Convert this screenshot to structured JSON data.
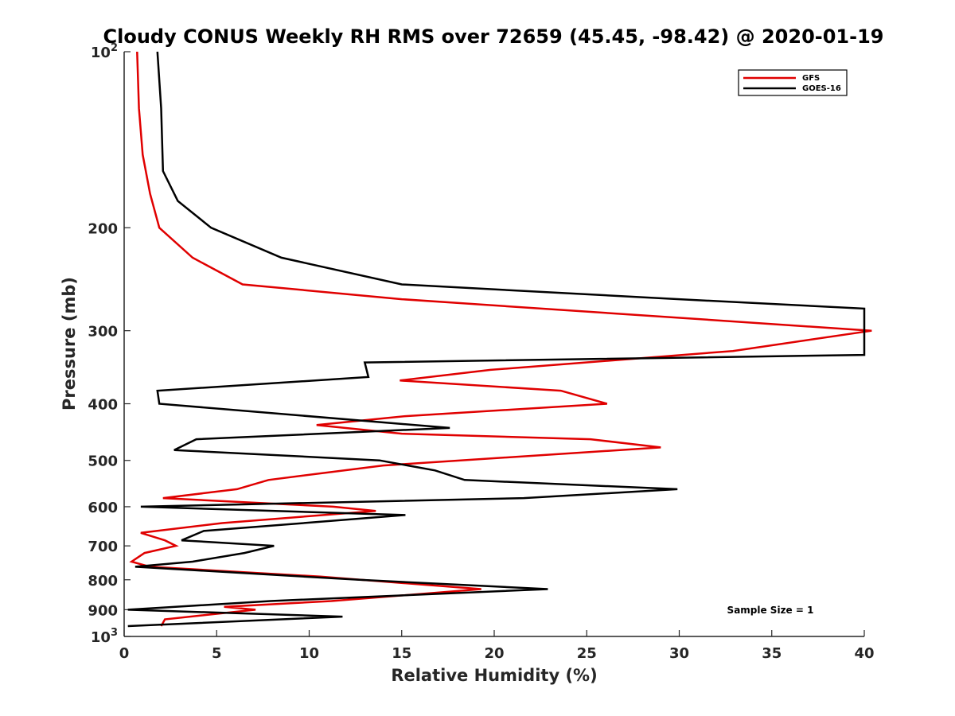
{
  "chart_data": {
    "type": "line",
    "title": "Cloudy CONUS Weekly RH RMS over 72659 (45.45, -98.42) @ 2020-01-19",
    "xlabel": "Relative Humidity (%)",
    "ylabel": "Pressure (mb)",
    "xlim": [
      0,
      40
    ],
    "ylim": [
      100,
      1000
    ],
    "y_scale": "log",
    "y_reversed": true,
    "grid": false,
    "legend_position": "top-right",
    "x_ticks": [
      "0",
      "5",
      "10",
      "15",
      "20",
      "25",
      "30",
      "35",
      "40"
    ],
    "y_ticks": [
      {
        "value": 100,
        "base": "10",
        "exp": "2"
      },
      {
        "value": 200,
        "label": "200"
      },
      {
        "value": 300,
        "label": "300"
      },
      {
        "value": 400,
        "label": "400"
      },
      {
        "value": 500,
        "label": "500"
      },
      {
        "value": 600,
        "label": "600"
      },
      {
        "value": 700,
        "label": "700"
      },
      {
        "value": 800,
        "label": "800"
      },
      {
        "value": 900,
        "label": "900"
      },
      {
        "value": 1000,
        "base": "10",
        "exp": "3"
      }
    ],
    "annotation": "Sample Size = 1",
    "series": [
      {
        "name": "GFS",
        "color": "#e00000",
        "points": [
          [
            0.7,
            100
          ],
          [
            0.8,
            125
          ],
          [
            1.0,
            150
          ],
          [
            1.4,
            175
          ],
          [
            1.9,
            200
          ],
          [
            3.7,
            225
          ],
          [
            6.4,
            250
          ],
          [
            15.0,
            265
          ],
          [
            40.4,
            300
          ],
          [
            32.9,
            325
          ],
          [
            19.8,
            350
          ],
          [
            14.9,
            365
          ],
          [
            23.6,
            380
          ],
          [
            26.1,
            400
          ],
          [
            15.2,
            420
          ],
          [
            10.4,
            435
          ],
          [
            15.0,
            450
          ],
          [
            25.2,
            460
          ],
          [
            29.0,
            475
          ],
          [
            14.0,
            510
          ],
          [
            7.8,
            540
          ],
          [
            6.1,
            560
          ],
          [
            2.1,
            580
          ],
          [
            11.3,
            600
          ],
          [
            13.6,
            610
          ],
          [
            5.3,
            640
          ],
          [
            0.9,
            665
          ],
          [
            2.2,
            685
          ],
          [
            2.8,
            700
          ],
          [
            1.1,
            720
          ],
          [
            0.4,
            745
          ],
          [
            1.4,
            760
          ],
          [
            10.6,
            790
          ],
          [
            19.3,
            830
          ],
          [
            11.2,
            870
          ],
          [
            5.4,
            890
          ],
          [
            7.1,
            900
          ],
          [
            2.2,
            935
          ],
          [
            2.0,
            960
          ]
        ]
      },
      {
        "name": "GOES-16",
        "color": "#000000",
        "points": [
          [
            1.8,
            100
          ],
          [
            2.0,
            125
          ],
          [
            2.1,
            160
          ],
          [
            2.9,
            180
          ],
          [
            4.7,
            200
          ],
          [
            8.5,
            225
          ],
          [
            15.0,
            250
          ],
          [
            30.0,
            265
          ],
          [
            40.0,
            275
          ],
          [
            40.0,
            330
          ],
          [
            13.0,
            340
          ],
          [
            13.2,
            360
          ],
          [
            1.8,
            380
          ],
          [
            1.9,
            400
          ],
          [
            17.6,
            440
          ],
          [
            3.9,
            460
          ],
          [
            2.7,
            480
          ],
          [
            13.8,
            500
          ],
          [
            16.8,
            520
          ],
          [
            18.4,
            540
          ],
          [
            29.9,
            560
          ],
          [
            21.6,
            580
          ],
          [
            0.9,
            600
          ],
          [
            15.2,
            620
          ],
          [
            4.3,
            660
          ],
          [
            3.1,
            685
          ],
          [
            8.1,
            700
          ],
          [
            6.5,
            720
          ],
          [
            3.7,
            745
          ],
          [
            0.6,
            760
          ],
          [
            12.7,
            800
          ],
          [
            22.9,
            830
          ],
          [
            7.9,
            870
          ],
          [
            0.2,
            900
          ],
          [
            11.8,
            925
          ],
          [
            0.2,
            960
          ]
        ]
      }
    ]
  }
}
